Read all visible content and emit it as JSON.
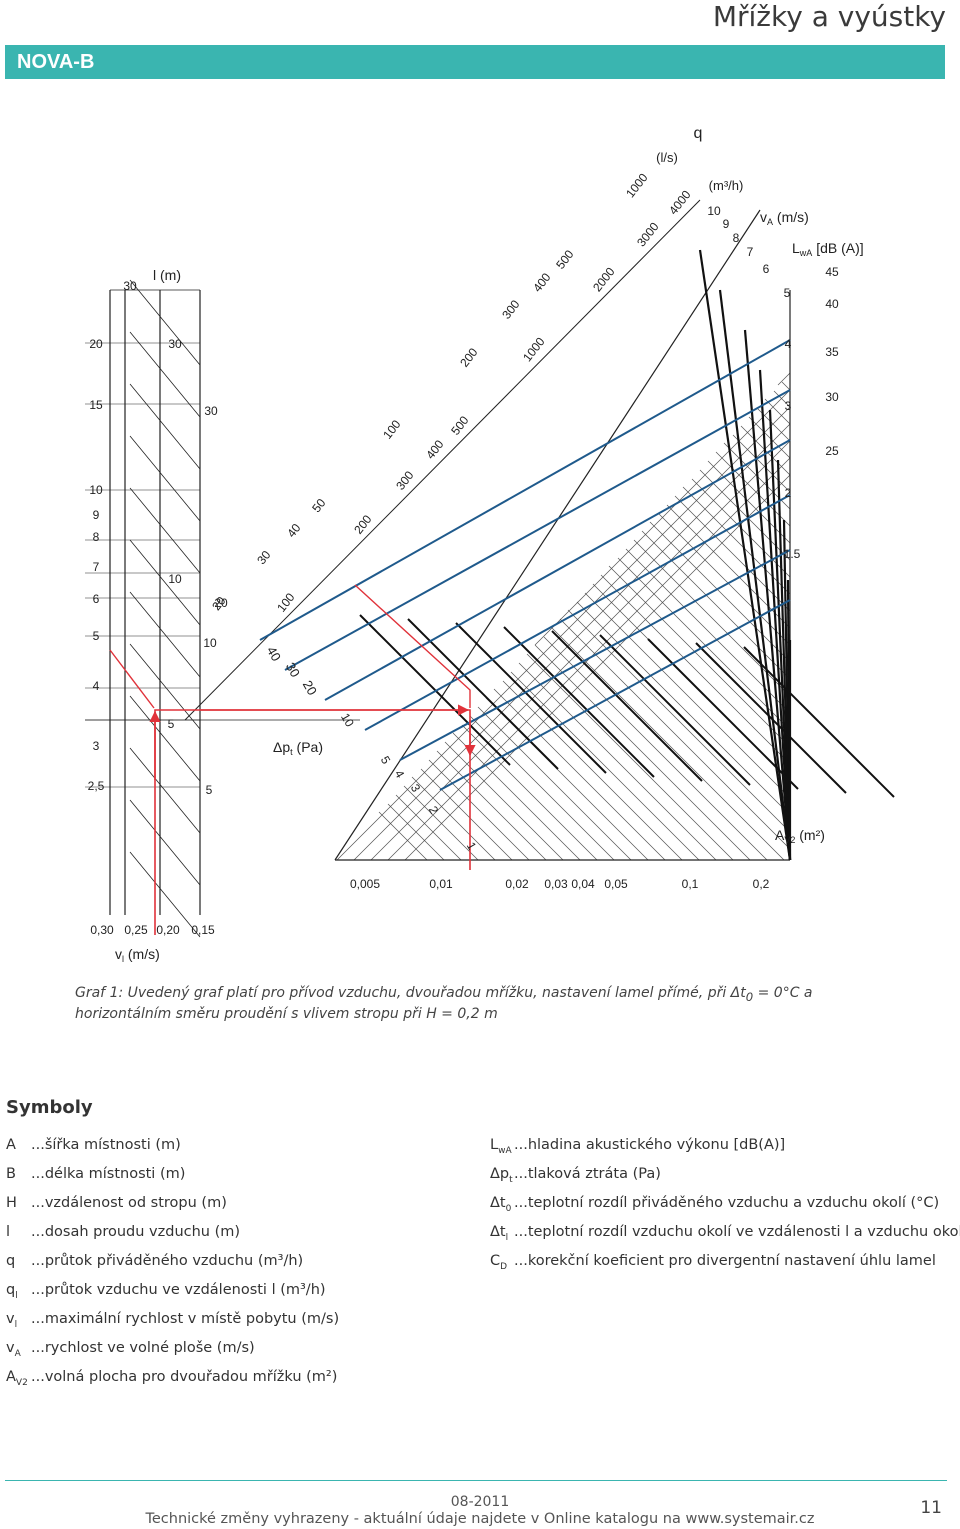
{
  "header": {
    "title": "Mřížky a vyústky",
    "product": "NOVA-B"
  },
  "colors": {
    "accent": "#3ab5b0",
    "area_lines": "#1f5a8c",
    "example_path": "#e0323a"
  },
  "chart_data": {
    "type": "nomogram",
    "scales": {
      "l_header": "l (m)",
      "l_left": [
        "30",
        "20",
        "15",
        "10",
        "9",
        "8",
        "7",
        "6",
        "5",
        "4",
        "3",
        "2,5"
      ],
      "l_mid": [
        "30",
        "30",
        "30",
        "10",
        "20",
        "10",
        "5",
        "5"
      ],
      "q_header": "q",
      "q_ls_unit": "(l/s)",
      "q_ls_ticks": [
        "1000",
        "500",
        "400",
        "300",
        "200",
        "100",
        "50",
        "40",
        "30",
        "20"
      ],
      "q_m3h_unit": "(m³/h)",
      "q_m3h_ticks": [
        "4000",
        "3000",
        "2000",
        "1000",
        "500",
        "400",
        "300",
        "200",
        "100"
      ],
      "vA_label": "v",
      "vA_sub": "A",
      "vA_unit": " (m/s)",
      "vA_ticks": [
        "10",
        "9",
        "8",
        "7",
        "6",
        "5",
        "4",
        "3",
        "2",
        "1.5"
      ],
      "LwA_label": "L",
      "LwA_sub": "wA",
      "LwA_unit": " [dB (A)]",
      "LwA_ticks": [
        "45",
        "40",
        "35",
        "30",
        "25"
      ],
      "dp_label": "Δp",
      "dp_sub": "t",
      "dp_unit": " (Pa)",
      "dp_ticks_upper": [
        "40",
        "30",
        "20"
      ],
      "dp_ticks_lower": [
        "10",
        "5",
        "4",
        "3",
        "2",
        "1"
      ],
      "av2_label": "A",
      "av2_sub": "V2",
      "av2_unit": " (m²)",
      "av2_ticks": [
        "0,005",
        "0,01",
        "0,02",
        "0,03",
        "0,04",
        "0,05",
        "0,1",
        "0,2"
      ],
      "vl_ticks": [
        "0,30",
        "0,25",
        "0,20",
        "0,15"
      ],
      "vl_label": "v",
      "vl_sub": "l",
      "vl_unit": " (m/s)"
    }
  },
  "caption": {
    "text": "Graf 1: Uvedený graf platí pro přívod vzduchu, dvouřadou mřížku, nastavení lamel přímé, při Δt",
    "sub": "0",
    "text2": " = 0°C a horizontálním směru proudění s vlivem stropu při H = 0,2 m"
  },
  "symbols": {
    "heading": "Symboly",
    "left": [
      {
        "code": "A",
        "sub": "",
        "desc": "...šířka místnosti (m)"
      },
      {
        "code": "B",
        "sub": "",
        "desc": "...délka místnosti (m)"
      },
      {
        "code": "H",
        "sub": "",
        "desc": "...vzdálenost od stropu (m)"
      },
      {
        "code": "l",
        "sub": "",
        "desc": "...dosah proudu vzduchu (m)"
      },
      {
        "code": "q",
        "sub": "",
        "desc": "...průtok přiváděného vzduchu (m³/h)"
      },
      {
        "code": "q",
        "sub": "l",
        "desc": "...průtok vzduchu ve vzdálenosti l (m³/h)"
      },
      {
        "code": "v",
        "sub": "l",
        "desc": "...maximální rychlost v místě pobytu (m/s)"
      },
      {
        "code": "v",
        "sub": "A",
        "desc": "...rychlost ve volné ploše (m/s)"
      },
      {
        "code": "A",
        "sub": "V2",
        "desc": "...volná plocha pro dvouřadou mřížku (m²)"
      }
    ],
    "right": [
      {
        "code": "L",
        "sub": "wA",
        "desc": "...hladina akustického výkonu [dB(A)]"
      },
      {
        "code": "Δp",
        "sub": "t",
        "desc": "...tlaková ztráta (Pa)"
      },
      {
        "code": "Δt",
        "sub": "0",
        "desc": "...teplotní rozdíl přiváděného vzduchu a vzduchu okolí (°C)"
      },
      {
        "code": "Δt",
        "sub": "l",
        "desc": "...teplotní rozdíl vzduchu okolí ve vzdálenosti l a vzduchu okolí (°C)"
      },
      {
        "code": "C",
        "sub": "D",
        "desc": "...korekční koeficient pro divergentní nastavení úhlu lamel"
      }
    ]
  },
  "footer": {
    "date": "08-2011",
    "note": "Technické změny vyhrazeny - aktuální údaje najdete v Online katalogu na www.systemair.cz",
    "page": "11"
  }
}
